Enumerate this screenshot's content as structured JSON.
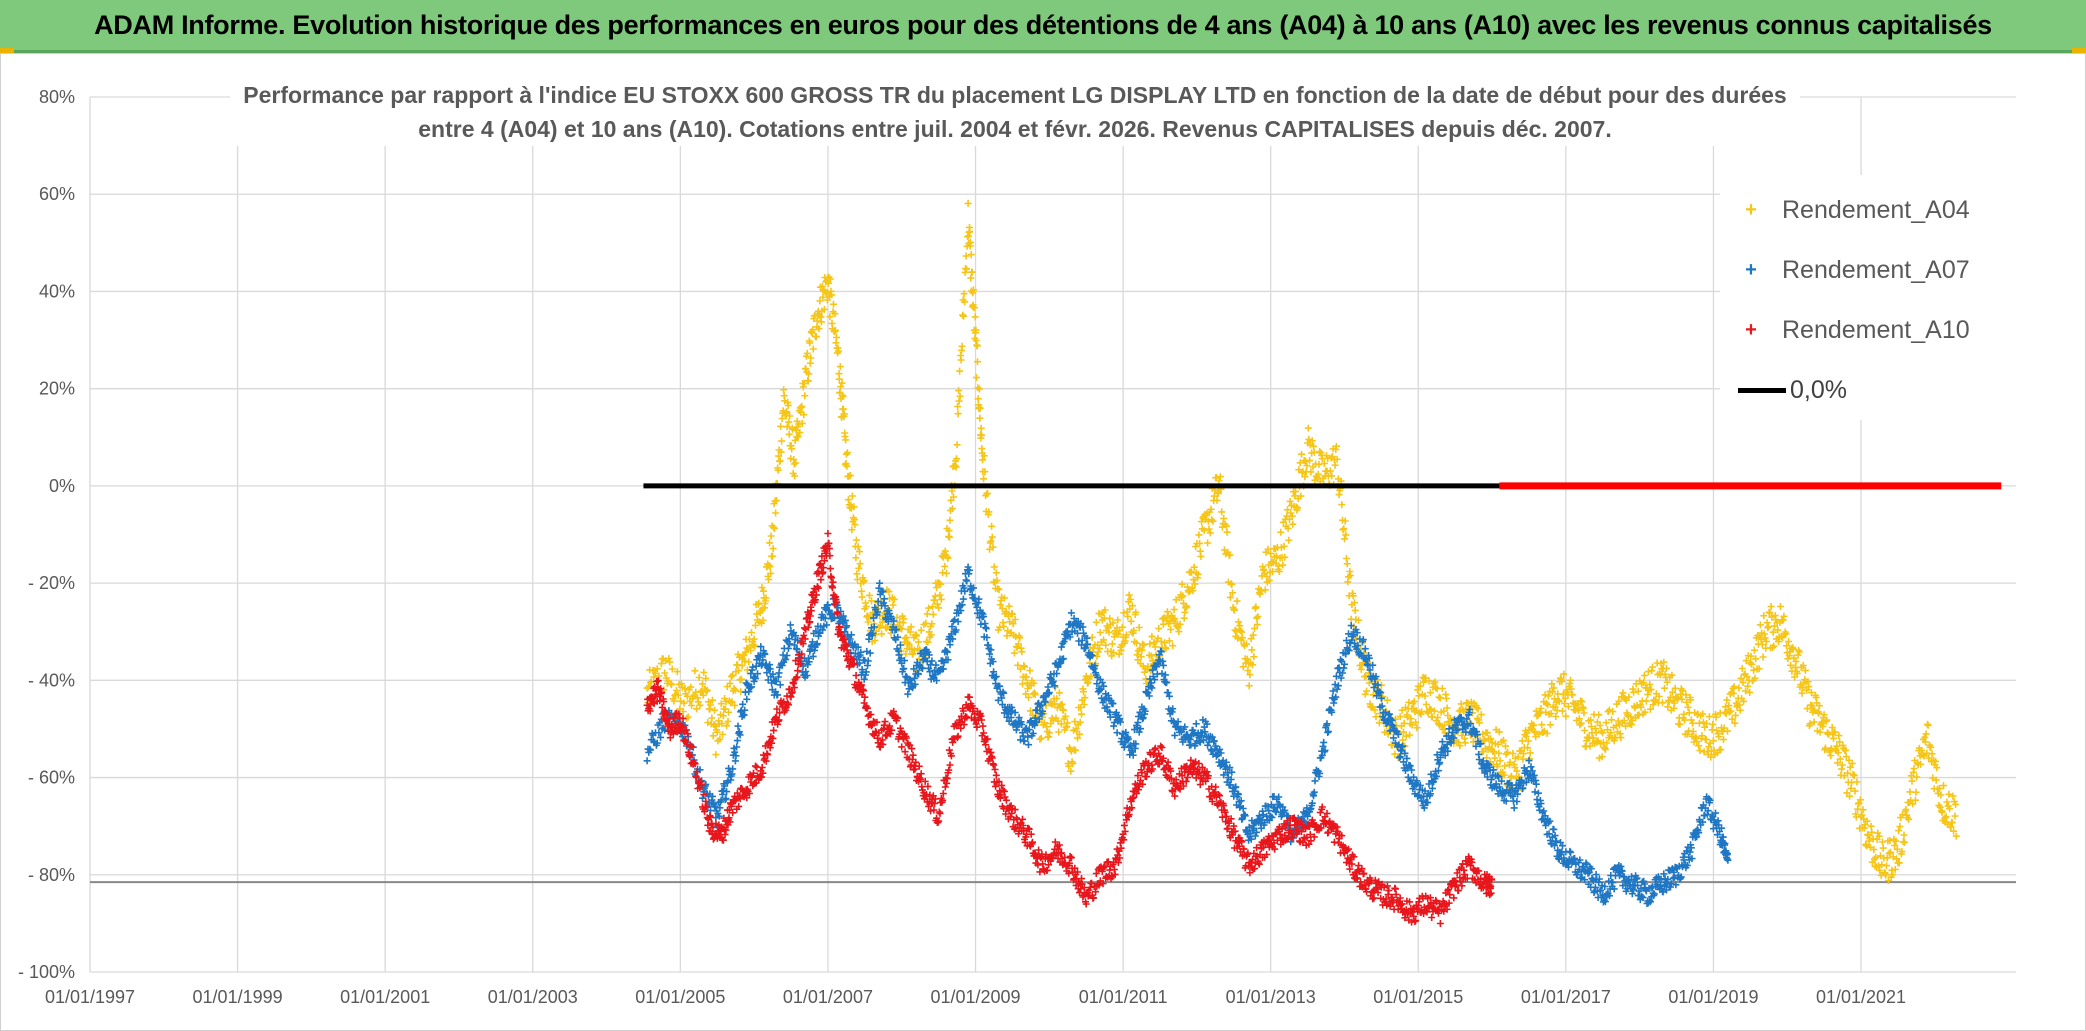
{
  "header": {
    "title": "ADAM Informe. Evolution historique des performances en euros pour des détentions de 4 ans (A04) à 10 ans (A10) avec les revenus connus capitalisés"
  },
  "chart_data": {
    "type": "scatter",
    "title_line1": "Performance par rapport à l'indice EU STOXX 600 GROSS TR  du placement LG DISPLAY LTD en fonction de la date de début pour des durées",
    "title_line2": "entre 4 (A04) et 10 ans (A10). Cotations entre juil. 2004 et févr. 2026. Revenus CAPITALISES depuis déc. 2007.",
    "x_tick_labels": [
      "01/01/1997",
      "01/01/1999",
      "01/01/2001",
      "01/01/2003",
      "01/01/2005",
      "01/01/2007",
      "01/01/2009",
      "01/01/2011",
      "01/01/2013",
      "01/01/2015",
      "01/01/2017",
      "01/01/2019",
      "01/01/2021"
    ],
    "y_tick_labels": [
      "80%",
      "60%",
      "40%",
      "20%",
      "0%",
      "- 20%",
      "- 40%",
      "- 60%",
      "- 80%",
      "- 100%"
    ],
    "xlim": [
      1997.0,
      2023.1
    ],
    "ylim": [
      -100,
      80
    ],
    "grid": true,
    "legend_position": "top-right",
    "series": [
      {
        "name": "Rendement_A04",
        "color": "#f5c518",
        "marker": "+",
        "points": [
          [
            2004.55,
            -43
          ],
          [
            2004.8,
            -38
          ],
          [
            2005.05,
            -45
          ],
          [
            2005.3,
            -40
          ],
          [
            2005.5,
            -52
          ],
          [
            2005.7,
            -42
          ],
          [
            2005.9,
            -35
          ],
          [
            2006.1,
            -25
          ],
          [
            2006.25,
            -12
          ],
          [
            2006.4,
            18
          ],
          [
            2006.55,
            5
          ],
          [
            2006.7,
            22
          ],
          [
            2006.85,
            35
          ],
          [
            2007.0,
            42
          ],
          [
            2007.15,
            25
          ],
          [
            2007.25,
            5
          ],
          [
            2007.4,
            -15
          ],
          [
            2007.6,
            -28
          ],
          [
            2007.8,
            -25
          ],
          [
            2008.0,
            -30
          ],
          [
            2008.2,
            -35
          ],
          [
            2008.4,
            -28
          ],
          [
            2008.6,
            -15
          ],
          [
            2008.75,
            10
          ],
          [
            2008.9,
            55
          ],
          [
            2009.0,
            30
          ],
          [
            2009.1,
            5
          ],
          [
            2009.3,
            -25
          ],
          [
            2009.5,
            -30
          ],
          [
            2009.7,
            -40
          ],
          [
            2009.9,
            -50
          ],
          [
            2010.1,
            -45
          ],
          [
            2010.3,
            -55
          ],
          [
            2010.5,
            -40
          ],
          [
            2010.7,
            -28
          ],
          [
            2010.9,
            -32
          ],
          [
            2011.1,
            -25
          ],
          [
            2011.3,
            -38
          ],
          [
            2011.5,
            -32
          ],
          [
            2011.7,
            -28
          ],
          [
            2011.9,
            -20
          ],
          [
            2012.1,
            -10
          ],
          [
            2012.3,
            0
          ],
          [
            2012.5,
            -25
          ],
          [
            2012.7,
            -38
          ],
          [
            2012.9,
            -18
          ],
          [
            2013.1,
            -15
          ],
          [
            2013.3,
            -5
          ],
          [
            2013.5,
            8
          ],
          [
            2013.7,
            2
          ],
          [
            2013.9,
            5
          ],
          [
            2014.1,
            -25
          ],
          [
            2014.3,
            -40
          ],
          [
            2014.5,
            -45
          ],
          [
            2014.7,
            -52
          ],
          [
            2014.9,
            -48
          ],
          [
            2015.1,
            -42
          ],
          [
            2015.3,
            -45
          ],
          [
            2015.5,
            -50
          ],
          [
            2015.7,
            -48
          ],
          [
            2015.9,
            -52
          ],
          [
            2016.1,
            -55
          ],
          [
            2016.3,
            -60
          ],
          [
            2016.5,
            -52
          ],
          [
            2016.7,
            -48
          ],
          [
            2016.9,
            -42
          ],
          [
            2017.1,
            -45
          ],
          [
            2017.3,
            -50
          ],
          [
            2017.5,
            -52
          ],
          [
            2017.7,
            -48
          ],
          [
            2017.9,
            -45
          ],
          [
            2018.1,
            -42
          ],
          [
            2018.3,
            -40
          ],
          [
            2018.5,
            -45
          ],
          [
            2018.7,
            -48
          ],
          [
            2018.9,
            -52
          ],
          [
            2019.1,
            -50
          ],
          [
            2019.3,
            -45
          ],
          [
            2019.5,
            -38
          ],
          [
            2019.7,
            -30
          ],
          [
            2019.9,
            -28
          ],
          [
            2020.1,
            -35
          ],
          [
            2020.3,
            -45
          ],
          [
            2020.5,
            -50
          ],
          [
            2020.7,
            -55
          ],
          [
            2020.9,
            -62
          ],
          [
            2021.1,
            -72
          ],
          [
            2021.3,
            -78
          ],
          [
            2021.5,
            -75
          ],
          [
            2021.7,
            -62
          ],
          [
            2021.9,
            -52
          ],
          [
            2022.1,
            -65
          ],
          [
            2022.3,
            -68
          ]
        ]
      },
      {
        "name": "Rendement_A07",
        "color": "#1f77c4",
        "marker": "+",
        "points": [
          [
            2004.55,
            -55
          ],
          [
            2004.8,
            -48
          ],
          [
            2005.05,
            -50
          ],
          [
            2005.3,
            -62
          ],
          [
            2005.5,
            -68
          ],
          [
            2005.7,
            -58
          ],
          [
            2005.9,
            -42
          ],
          [
            2006.1,
            -35
          ],
          [
            2006.3,
            -42
          ],
          [
            2006.5,
            -30
          ],
          [
            2006.7,
            -38
          ],
          [
            2006.9,
            -28
          ],
          [
            2007.1,
            -25
          ],
          [
            2007.3,
            -32
          ],
          [
            2007.5,
            -38
          ],
          [
            2007.7,
            -22
          ],
          [
            2007.9,
            -30
          ],
          [
            2008.1,
            -42
          ],
          [
            2008.3,
            -35
          ],
          [
            2008.5,
            -40
          ],
          [
            2008.7,
            -30
          ],
          [
            2008.9,
            -18
          ],
          [
            2009.1,
            -28
          ],
          [
            2009.3,
            -42
          ],
          [
            2009.5,
            -48
          ],
          [
            2009.7,
            -52
          ],
          [
            2009.9,
            -45
          ],
          [
            2010.1,
            -38
          ],
          [
            2010.3,
            -28
          ],
          [
            2010.5,
            -32
          ],
          [
            2010.7,
            -42
          ],
          [
            2010.9,
            -48
          ],
          [
            2011.1,
            -55
          ],
          [
            2011.3,
            -45
          ],
          [
            2011.5,
            -35
          ],
          [
            2011.7,
            -50
          ],
          [
            2011.9,
            -52
          ],
          [
            2012.1,
            -50
          ],
          [
            2012.3,
            -55
          ],
          [
            2012.5,
            -62
          ],
          [
            2012.7,
            -72
          ],
          [
            2012.9,
            -68
          ],
          [
            2013.1,
            -65
          ],
          [
            2013.3,
            -72
          ],
          [
            2013.5,
            -68
          ],
          [
            2013.7,
            -55
          ],
          [
            2013.9,
            -40
          ],
          [
            2014.1,
            -30
          ],
          [
            2014.3,
            -35
          ],
          [
            2014.5,
            -45
          ],
          [
            2014.7,
            -52
          ],
          [
            2014.9,
            -60
          ],
          [
            2015.1,
            -65
          ],
          [
            2015.3,
            -55
          ],
          [
            2015.5,
            -50
          ],
          [
            2015.7,
            -48
          ],
          [
            2015.9,
            -58
          ],
          [
            2016.1,
            -62
          ],
          [
            2016.3,
            -64
          ],
          [
            2016.5,
            -58
          ],
          [
            2016.7,
            -68
          ],
          [
            2016.9,
            -75
          ],
          [
            2017.1,
            -78
          ],
          [
            2017.3,
            -80
          ],
          [
            2017.5,
            -84
          ],
          [
            2017.7,
            -80
          ],
          [
            2017.9,
            -82
          ],
          [
            2018.1,
            -84
          ],
          [
            2018.3,
            -82
          ],
          [
            2018.5,
            -80
          ],
          [
            2018.7,
            -75
          ],
          [
            2018.9,
            -65
          ],
          [
            2019.1,
            -72
          ],
          [
            2019.2,
            -78
          ]
        ]
      },
      {
        "name": "Rendement_A10",
        "color": "#e8171c",
        "marker": "+",
        "points": [
          [
            2004.55,
            -45
          ],
          [
            2004.7,
            -42
          ],
          [
            2004.85,
            -50
          ],
          [
            2005.0,
            -48
          ],
          [
            2005.2,
            -58
          ],
          [
            2005.4,
            -70
          ],
          [
            2005.55,
            -72
          ],
          [
            2005.7,
            -66
          ],
          [
            2005.9,
            -62
          ],
          [
            2006.1,
            -58
          ],
          [
            2006.3,
            -48
          ],
          [
            2006.5,
            -42
          ],
          [
            2006.7,
            -30
          ],
          [
            2006.85,
            -20
          ],
          [
            2007.0,
            -12
          ],
          [
            2007.15,
            -30
          ],
          [
            2007.3,
            -36
          ],
          [
            2007.5,
            -45
          ],
          [
            2007.7,
            -52
          ],
          [
            2007.9,
            -48
          ],
          [
            2008.1,
            -55
          ],
          [
            2008.3,
            -62
          ],
          [
            2008.5,
            -68
          ],
          [
            2008.7,
            -52
          ],
          [
            2008.9,
            -45
          ],
          [
            2009.1,
            -50
          ],
          [
            2009.3,
            -62
          ],
          [
            2009.5,
            -68
          ],
          [
            2009.7,
            -72
          ],
          [
            2009.9,
            -78
          ],
          [
            2010.1,
            -75
          ],
          [
            2010.3,
            -78
          ],
          [
            2010.5,
            -85
          ],
          [
            2010.7,
            -80
          ],
          [
            2010.9,
            -78
          ],
          [
            2011.1,
            -65
          ],
          [
            2011.3,
            -58
          ],
          [
            2011.5,
            -55
          ],
          [
            2011.7,
            -62
          ],
          [
            2011.9,
            -58
          ],
          [
            2012.1,
            -60
          ],
          [
            2012.3,
            -65
          ],
          [
            2012.5,
            -72
          ],
          [
            2012.7,
            -78
          ],
          [
            2012.9,
            -75
          ],
          [
            2013.1,
            -72
          ],
          [
            2013.3,
            -70
          ],
          [
            2013.5,
            -72
          ],
          [
            2013.7,
            -68
          ],
          [
            2013.9,
            -72
          ],
          [
            2014.1,
            -78
          ],
          [
            2014.3,
            -82
          ],
          [
            2014.5,
            -84
          ],
          [
            2014.7,
            -85
          ],
          [
            2014.9,
            -88
          ],
          [
            2015.1,
            -86
          ],
          [
            2015.3,
            -88
          ],
          [
            2015.5,
            -82
          ],
          [
            2015.7,
            -78
          ],
          [
            2015.9,
            -82
          ],
          [
            2016.0,
            -82
          ]
        ]
      }
    ],
    "zero_line": {
      "name": "0,0%",
      "color": "#000000",
      "x_range": [
        2004.5,
        2016.1
      ],
      "y": 0
    },
    "red_zero_band": {
      "color": "#ff0000",
      "x_range": [
        2016.1,
        2022.9
      ],
      "y": 0
    },
    "low_reference_line": {
      "color": "#888888",
      "y": -81.5
    }
  }
}
